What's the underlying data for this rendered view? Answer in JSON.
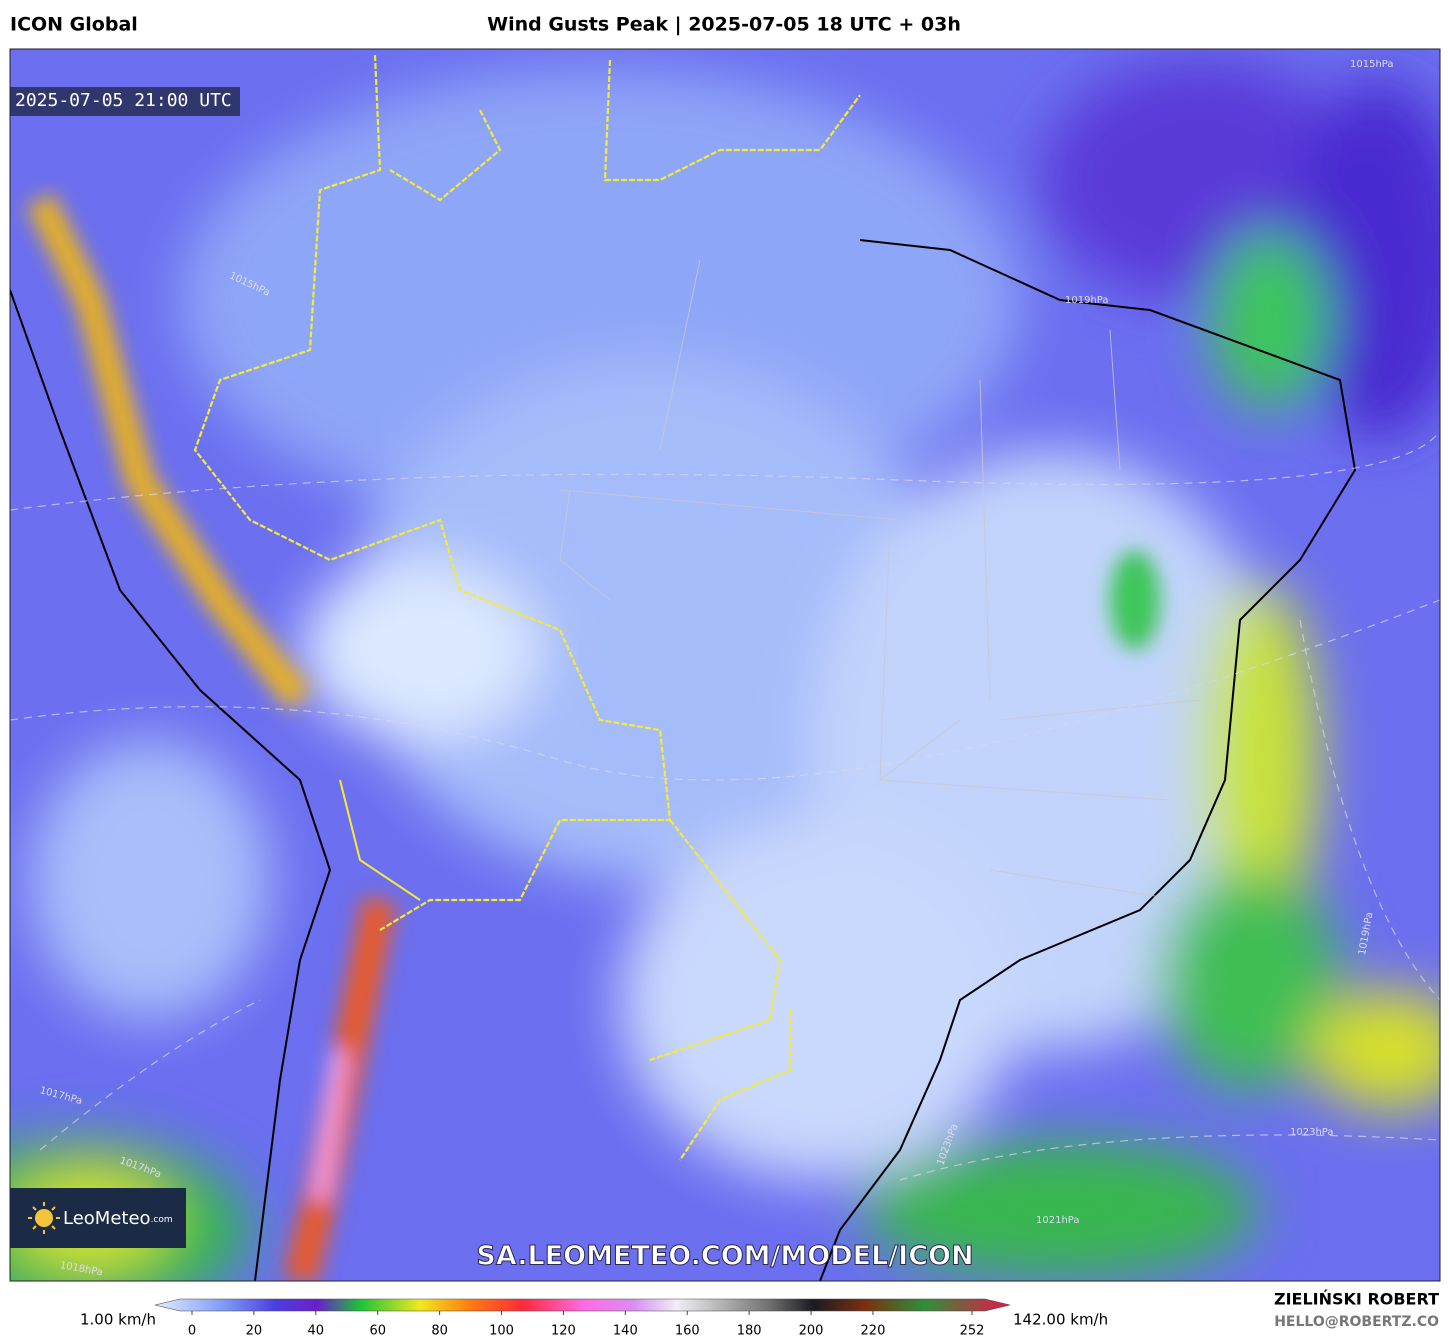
{
  "header": {
    "model": "ICON Global",
    "title": "Wind Gusts Peak | 2025-07-05 18 UTC + 03h"
  },
  "map": {
    "valid_time": "2025-07-05 21:00 UTC",
    "watermark": "SA.LEOMETEO.COM/MODEL/ICON",
    "logo": {
      "name": "LeoMeteo",
      "suffix": ".com"
    },
    "isobars": [
      "1015hPa",
      "1015hPa",
      "1017hPa",
      "1019hPa",
      "1023hPa",
      "1023hPa",
      "1021hPa",
      "1017hPa",
      "1019hPa",
      "1018hPa"
    ]
  },
  "colorbar": {
    "min_label": "1.00 km/h",
    "max_label": "142.00 km/h",
    "ticks": [
      0,
      20,
      40,
      60,
      80,
      100,
      120,
      140,
      160,
      180,
      200,
      220,
      252
    ]
  },
  "footer": {
    "author": "ZIELIŃSKI ROBERT",
    "email": "HELLO@ROBERTZ.CO"
  }
}
